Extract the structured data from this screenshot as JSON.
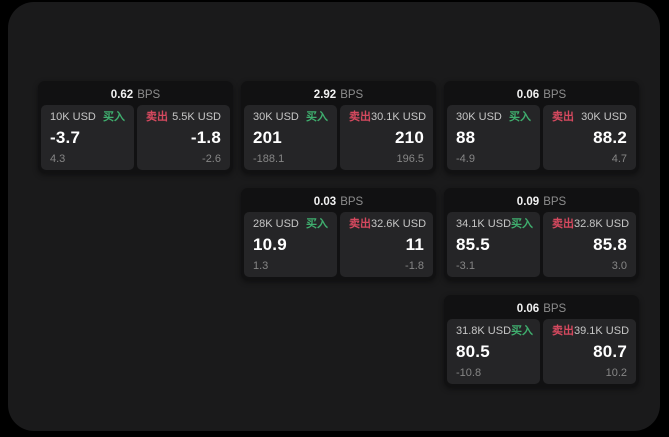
{
  "colors": {
    "buy_green": "#3fae6e",
    "sell_red": "#d6495f",
    "panel_bg": "#1a1a1b",
    "card_bg": "#111112",
    "tile_bg": "#252527"
  },
  "labels": {
    "buy": "买入",
    "sell": "卖出",
    "bps_unit": "BPS"
  },
  "cards": [
    {
      "bps": "0.62",
      "buy": {
        "amount": "10K USD",
        "price": "-3.7",
        "delta": "4.3"
      },
      "sell": {
        "amount": "5.5K USD",
        "price": "-1.8",
        "delta": "-2.6"
      }
    },
    {
      "bps": "2.92",
      "buy": {
        "amount": "30K USD",
        "price": "201",
        "delta": "-188.1"
      },
      "sell": {
        "amount": "30.1K USD",
        "price": "210",
        "delta": "196.5"
      }
    },
    {
      "bps": "0.06",
      "buy": {
        "amount": "30K USD",
        "price": "88",
        "delta": "-4.9"
      },
      "sell": {
        "amount": "30K USD",
        "price": "88.2",
        "delta": "4.7"
      }
    },
    {
      "bps": "0.03",
      "buy": {
        "amount": "28K USD",
        "price": "10.9",
        "delta": "1.3"
      },
      "sell": {
        "amount": "32.6K USD",
        "price": "11",
        "delta": "-1.8"
      }
    },
    {
      "bps": "0.09",
      "buy": {
        "amount": "34.1K USD",
        "price": "85.5",
        "delta": "-3.1"
      },
      "sell": {
        "amount": "32.8K USD",
        "price": "85.8",
        "delta": "3.0"
      }
    },
    {
      "bps": "0.06",
      "buy": {
        "amount": "31.8K USD",
        "price": "80.5",
        "delta": "-10.8"
      },
      "sell": {
        "amount": "39.1K USD",
        "price": "80.7",
        "delta": "10.2"
      }
    }
  ]
}
